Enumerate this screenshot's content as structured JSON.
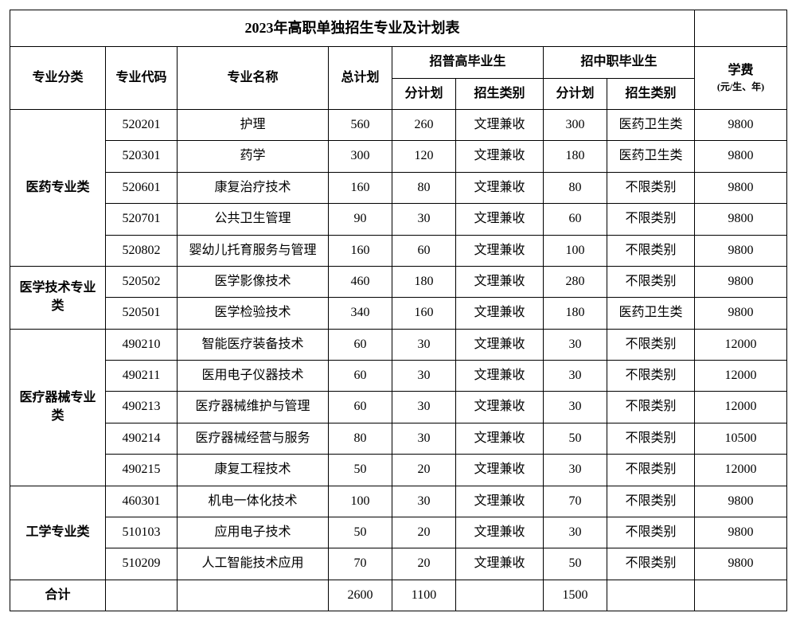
{
  "table": {
    "title": "2023年高职单独招生专业及计划表",
    "headers": {
      "category": "专业分类",
      "code": "专业代码",
      "name": "专业名称",
      "total_plan": "总计划",
      "recruit_high": "招普高毕业生",
      "recruit_voc": "招中职毕业生",
      "sub_plan": "分计划",
      "admit_type": "招生类别",
      "fee": "学费",
      "fee_note": "(元/生、年)"
    },
    "groups": [
      {
        "category": "医药专业类",
        "rows": [
          {
            "code": "520201",
            "name": "护理",
            "total": "560",
            "high_plan": "260",
            "high_type": "文理兼收",
            "voc_plan": "300",
            "voc_type": "医药卫生类",
            "fee": "9800"
          },
          {
            "code": "520301",
            "name": "药学",
            "total": "300",
            "high_plan": "120",
            "high_type": "文理兼收",
            "voc_plan": "180",
            "voc_type": "医药卫生类",
            "fee": "9800"
          },
          {
            "code": "520601",
            "name": "康复治疗技术",
            "total": "160",
            "high_plan": "80",
            "high_type": "文理兼收",
            "voc_plan": "80",
            "voc_type": "不限类别",
            "fee": "9800"
          },
          {
            "code": "520701",
            "name": "公共卫生管理",
            "total": "90",
            "high_plan": "30",
            "high_type": "文理兼收",
            "voc_plan": "60",
            "voc_type": "不限类别",
            "fee": "9800"
          },
          {
            "code": "520802",
            "name": "婴幼儿托育服务与管理",
            "total": "160",
            "high_plan": "60",
            "high_type": "文理兼收",
            "voc_plan": "100",
            "voc_type": "不限类别",
            "fee": "9800"
          }
        ]
      },
      {
        "category": "医学技术专业类",
        "rows": [
          {
            "code": "520502",
            "name": "医学影像技术",
            "total": "460",
            "high_plan": "180",
            "high_type": "文理兼收",
            "voc_plan": "280",
            "voc_type": "不限类别",
            "fee": "9800"
          },
          {
            "code": "520501",
            "name": "医学检验技术",
            "total": "340",
            "high_plan": "160",
            "high_type": "文理兼收",
            "voc_plan": "180",
            "voc_type": "医药卫生类",
            "fee": "9800"
          }
        ]
      },
      {
        "category": "医疗器械专业类",
        "rows": [
          {
            "code": "490210",
            "name": "智能医疗装备技术",
            "total": "60",
            "high_plan": "30",
            "high_type": "文理兼收",
            "voc_plan": "30",
            "voc_type": "不限类别",
            "fee": "12000"
          },
          {
            "code": "490211",
            "name": "医用电子仪器技术",
            "total": "60",
            "high_plan": "30",
            "high_type": "文理兼收",
            "voc_plan": "30",
            "voc_type": "不限类别",
            "fee": "12000"
          },
          {
            "code": "490213",
            "name": "医疗器械维护与管理",
            "total": "60",
            "high_plan": "30",
            "high_type": "文理兼收",
            "voc_plan": "30",
            "voc_type": "不限类别",
            "fee": "12000"
          },
          {
            "code": "490214",
            "name": "医疗器械经营与服务",
            "total": "80",
            "high_plan": "30",
            "high_type": "文理兼收",
            "voc_plan": "50",
            "voc_type": "不限类别",
            "fee": "10500"
          },
          {
            "code": "490215",
            "name": "康复工程技术",
            "total": "50",
            "high_plan": "20",
            "high_type": "文理兼收",
            "voc_plan": "30",
            "voc_type": "不限类别",
            "fee": "12000"
          }
        ]
      },
      {
        "category": "工学专业类",
        "rows": [
          {
            "code": "460301",
            "name": "机电一体化技术",
            "total": "100",
            "high_plan": "30",
            "high_type": "文理兼收",
            "voc_plan": "70",
            "voc_type": "不限类别",
            "fee": "9800"
          },
          {
            "code": "510103",
            "name": "应用电子技术",
            "total": "50",
            "high_plan": "20",
            "high_type": "文理兼收",
            "voc_plan": "30",
            "voc_type": "不限类别",
            "fee": "9800"
          },
          {
            "code": "510209",
            "name": "人工智能技术应用",
            "total": "70",
            "high_plan": "20",
            "high_type": "文理兼收",
            "voc_plan": "50",
            "voc_type": "不限类别",
            "fee": "9800"
          }
        ]
      }
    ],
    "totals": {
      "label": "合计",
      "total": "2600",
      "high_plan": "1100",
      "voc_plan": "1500"
    }
  }
}
